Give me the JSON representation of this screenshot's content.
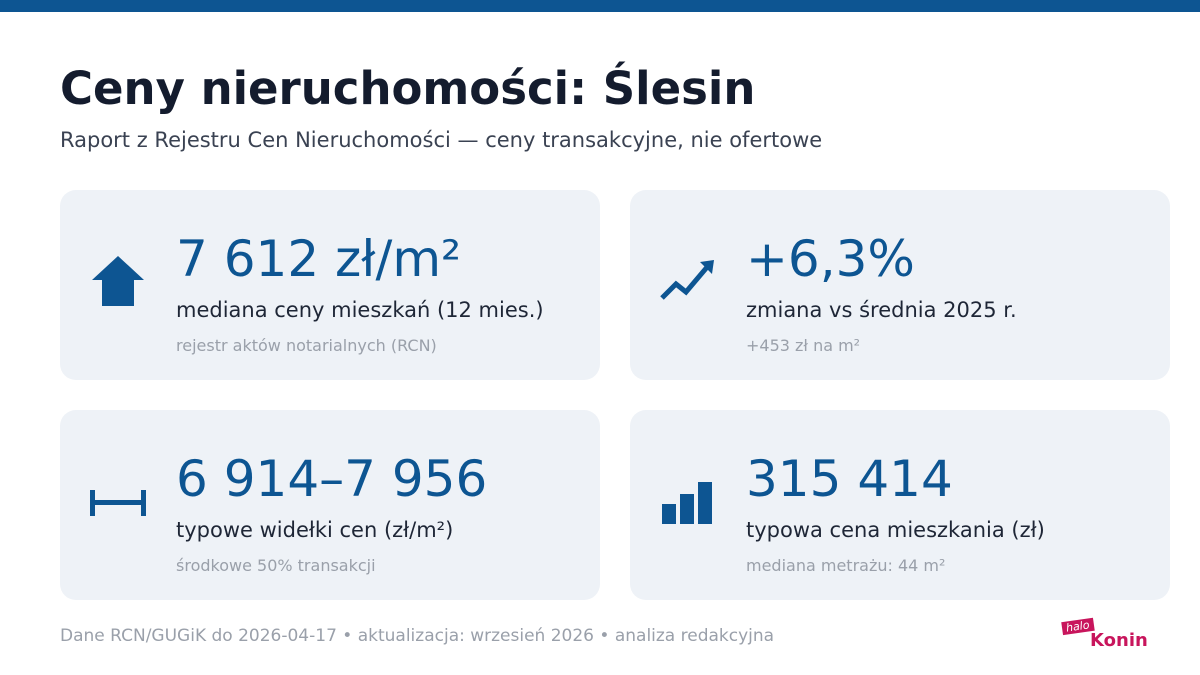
{
  "header": {
    "title": "Ceny nieruchomości: Ślesin",
    "subtitle": "Raport z Rejestru Cen Nieruchomości — ceny transakcyjne, nie ofertowe"
  },
  "cards": [
    {
      "value": "7 612 zł/m²",
      "label": "mediana ceny mieszkań (12 mies.)",
      "note": "rejestr aktów notarialnych (RCN)"
    },
    {
      "value": "+6,3%",
      "label": "zmiana vs średnia 2025 r.",
      "note": "+453 zł na m²"
    },
    {
      "value": "6 914–7 956",
      "label": "typowe widełki cen (zł/m²)",
      "note": "środkowe 50% transakcji"
    },
    {
      "value": "315 414",
      "label": "typowa cena mieszkania (zł)",
      "note": "mediana metrażu: 44 m²"
    }
  ],
  "footer": {
    "text": "Dane RCN/GUGiK do 2026-04-17 • aktualizacja: wrzesień 2026 • analiza redakcyjna"
  },
  "logo": {
    "small": "halo",
    "big": "Konin"
  }
}
